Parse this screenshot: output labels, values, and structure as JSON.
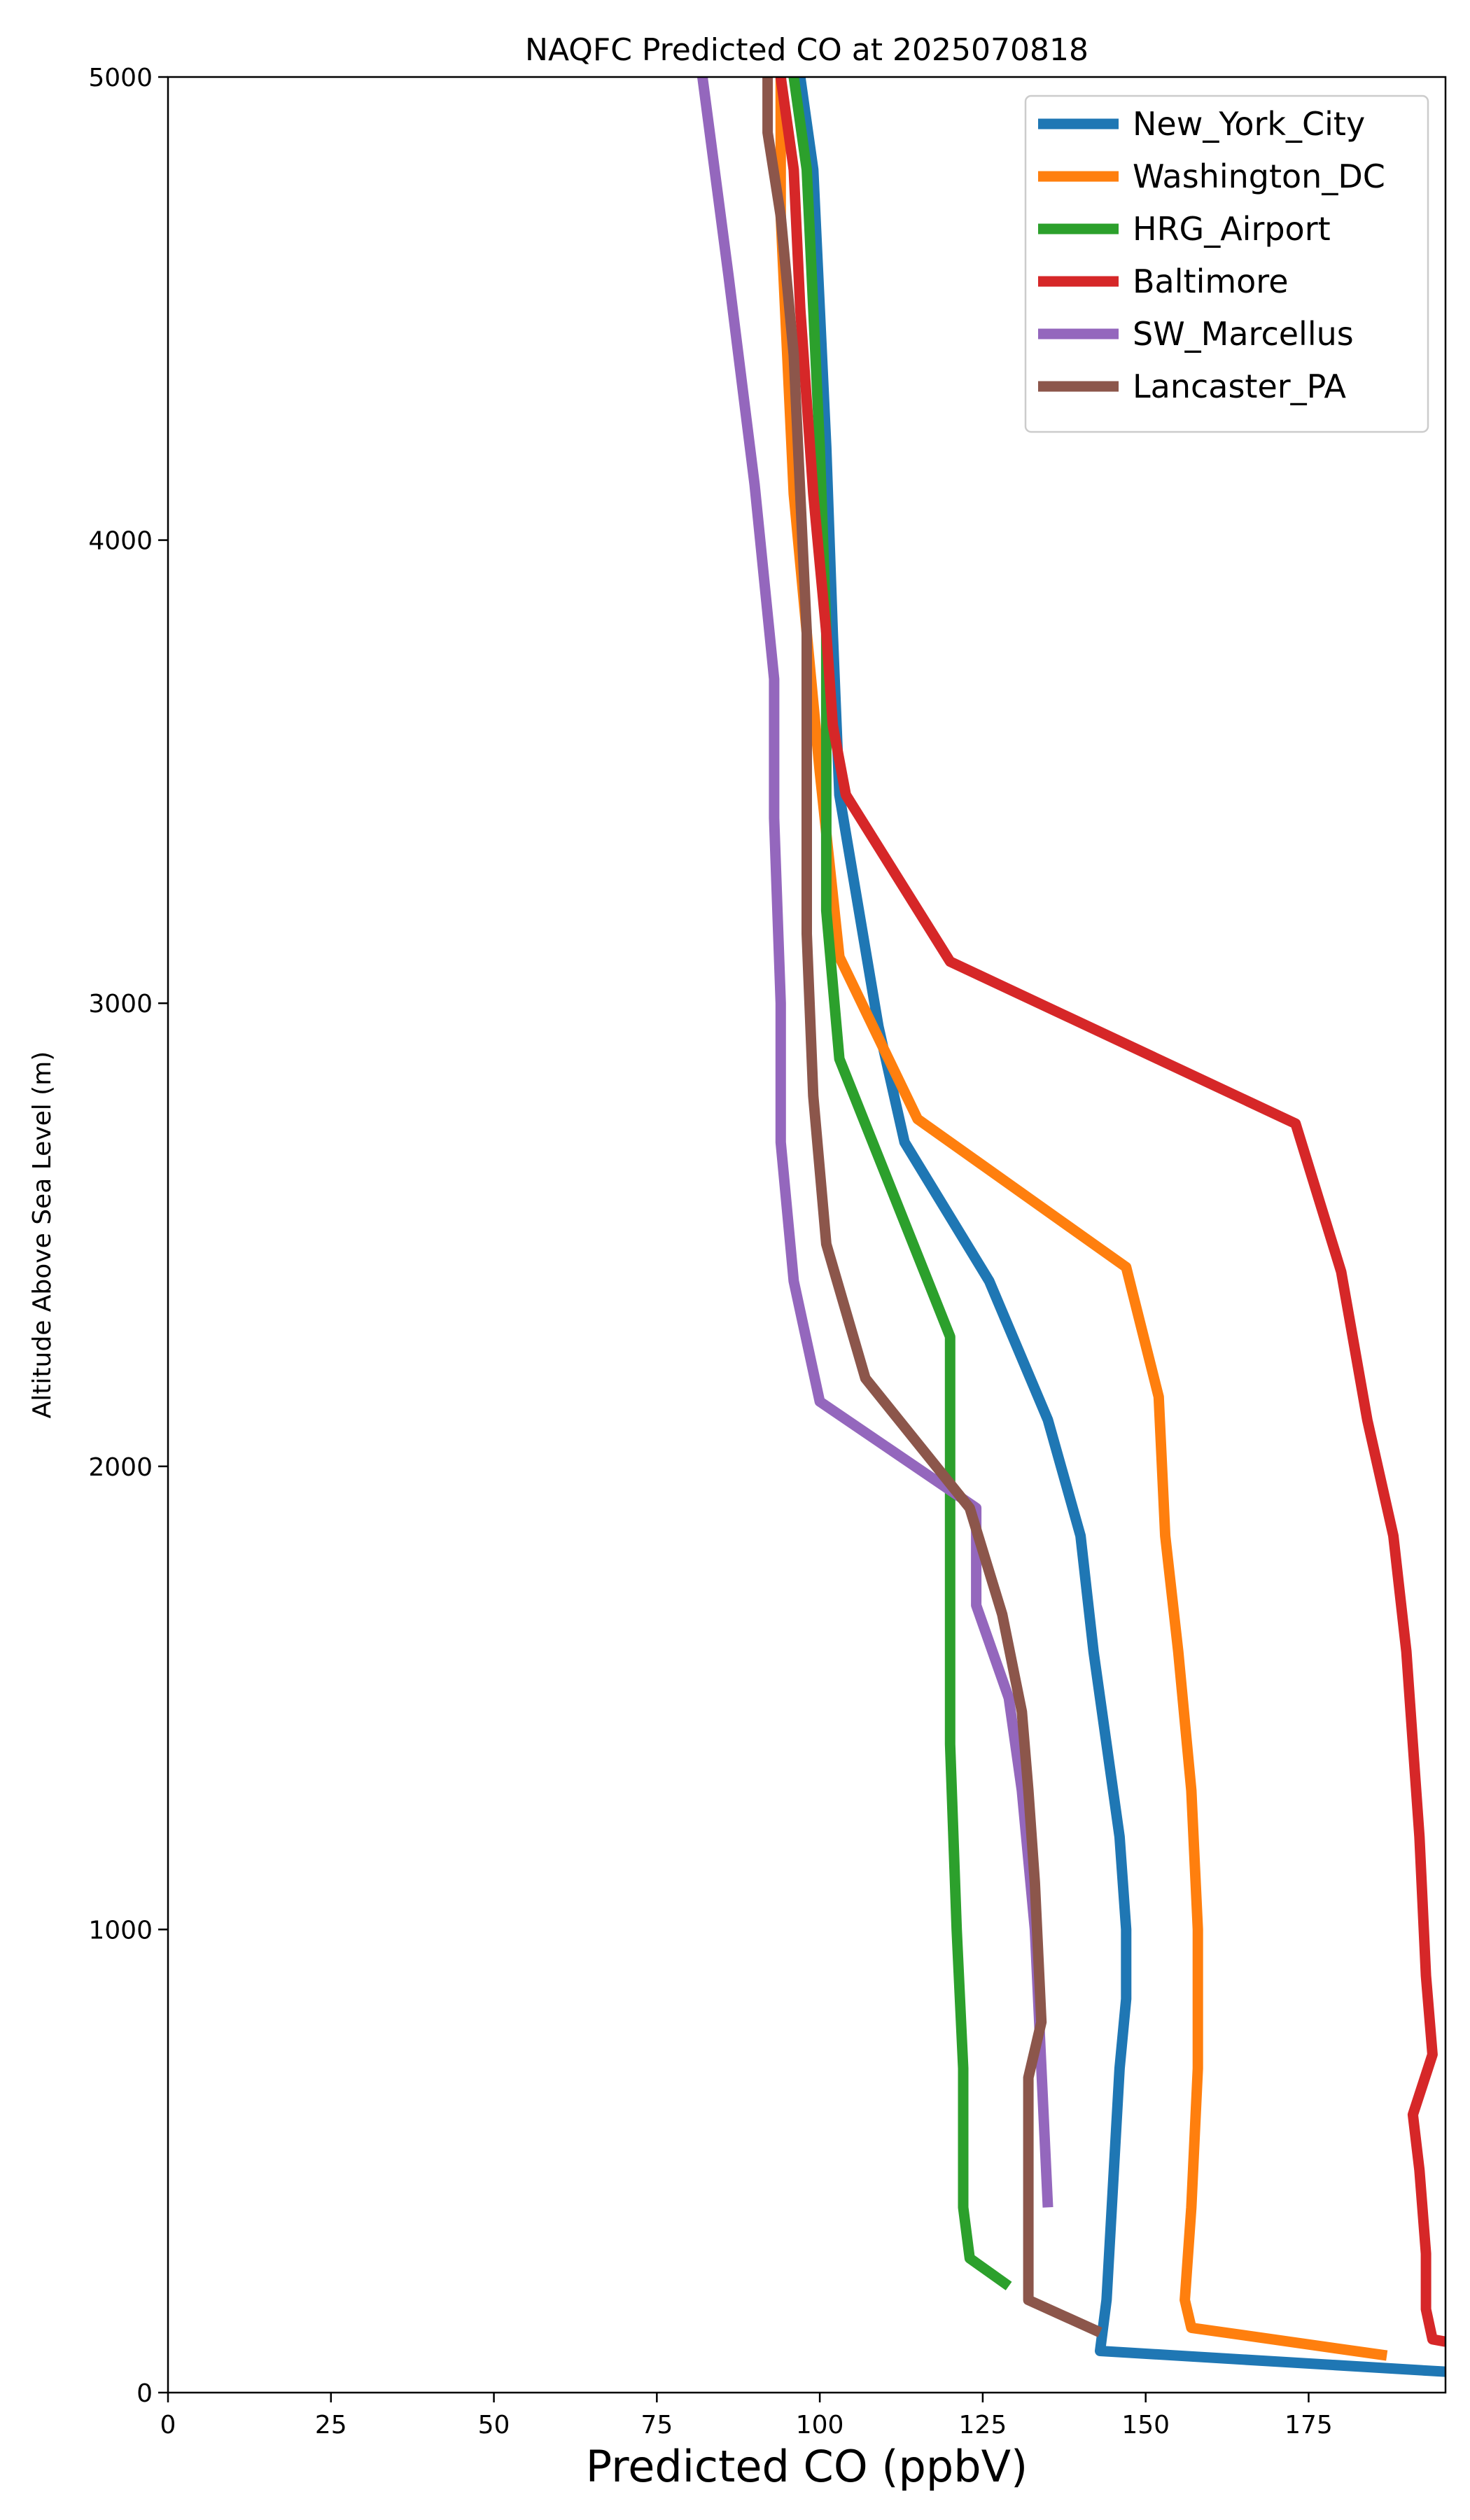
{
  "chart_data": {
    "type": "line",
    "title": "NAQFC Predicted CO at 2025070818",
    "xlabel": "Predicted CO (ppbV)",
    "ylabel": "Altitude Above Sea Level (m)",
    "xlim": [
      0,
      196
    ],
    "ylim": [
      0,
      5000
    ],
    "xticks": [
      "0",
      "25",
      "50",
      "75",
      "100",
      "125",
      "150",
      "175"
    ],
    "yticks": [
      "0",
      "1000",
      "2000",
      "3000",
      "4000",
      "5000"
    ],
    "grid": false,
    "legend_position": "top-right",
    "series": [
      {
        "name": "New_York_City",
        "color": "#1f77b4",
        "points": [
          [
            196,
            45
          ],
          [
            143,
            90
          ],
          [
            144,
            200
          ],
          [
            145,
            450
          ],
          [
            146,
            700
          ],
          [
            147,
            850
          ],
          [
            147,
            1000
          ],
          [
            146,
            1200
          ],
          [
            144,
            1400
          ],
          [
            142,
            1600
          ],
          [
            140,
            1850
          ],
          [
            135,
            2100
          ],
          [
            126,
            2400
          ],
          [
            113,
            2700
          ],
          [
            109,
            2950
          ],
          [
            103,
            3450
          ],
          [
            102,
            3800
          ],
          [
            101,
            4200
          ],
          [
            100,
            4500
          ],
          [
            99,
            4800
          ],
          [
            97,
            5000
          ]
        ]
      },
      {
        "name": "Washington_DC",
        "color": "#ff7f0e",
        "points": [
          [
            187,
            80
          ],
          [
            157,
            140
          ],
          [
            156,
            200
          ],
          [
            157,
            400
          ],
          [
            158,
            700
          ],
          [
            158,
            1000
          ],
          [
            157,
            1300
          ],
          [
            155,
            1600
          ],
          [
            153,
            1850
          ],
          [
            152,
            2150
          ],
          [
            147,
            2430
          ],
          [
            115,
            2750
          ],
          [
            103,
            3100
          ],
          [
            100,
            3500
          ],
          [
            98,
            3800
          ],
          [
            96,
            4100
          ],
          [
            95,
            4400
          ],
          [
            94,
            4700
          ],
          [
            94,
            5000
          ]
        ]
      },
      {
        "name": "HRG_Airport",
        "color": "#2ca02c",
        "points": [
          [
            129,
            230
          ],
          [
            123,
            290
          ],
          [
            122,
            400
          ],
          [
            122,
            700
          ],
          [
            121,
            1000
          ],
          [
            120,
            1400
          ],
          [
            120,
            1800
          ],
          [
            120,
            2000
          ],
          [
            120,
            2280
          ],
          [
            103,
            2880
          ],
          [
            101,
            3200
          ],
          [
            101,
            3500
          ],
          [
            101,
            3800
          ],
          [
            100,
            4200
          ],
          [
            99,
            4500
          ],
          [
            98,
            4800
          ],
          [
            96,
            5000
          ]
        ]
      },
      {
        "name": "Baltimore",
        "color": "#d62728",
        "points": [
          [
            196,
            110
          ],
          [
            194,
            115
          ],
          [
            193,
            180
          ],
          [
            193,
            300
          ],
          [
            192,
            480
          ],
          [
            191,
            600
          ],
          [
            194,
            730
          ],
          [
            193,
            900
          ],
          [
            192,
            1200
          ],
          [
            191,
            1400
          ],
          [
            190,
            1600
          ],
          [
            188,
            1850
          ],
          [
            184,
            2100
          ],
          [
            180,
            2420
          ],
          [
            173,
            2740
          ],
          [
            120,
            3090
          ],
          [
            104,
            3450
          ],
          [
            102,
            3600
          ],
          [
            101,
            3800
          ],
          [
            99,
            4100
          ],
          [
            97,
            4500
          ],
          [
            96,
            4800
          ],
          [
            94,
            5000
          ]
        ]
      },
      {
        "name": "SW_Marcellus",
        "color": "#9467bd",
        "points": [
          [
            135,
            400
          ],
          [
            134,
            700
          ],
          [
            133,
            1000
          ],
          [
            131,
            1300
          ],
          [
            129,
            1500
          ],
          [
            124,
            1700
          ],
          [
            124,
            1910
          ],
          [
            100,
            2140
          ],
          [
            96,
            2400
          ],
          [
            94,
            2700
          ],
          [
            94,
            3000
          ],
          [
            93,
            3400
          ],
          [
            93,
            3700
          ],
          [
            90,
            4120
          ],
          [
            86,
            4570
          ],
          [
            82,
            5000
          ]
        ]
      },
      {
        "name": "Lancaster_PA",
        "color": "#8c564b",
        "points": [
          [
            143,
            130
          ],
          [
            132,
            200
          ],
          [
            132,
            400
          ],
          [
            132,
            680
          ],
          [
            134,
            800
          ],
          [
            133,
            1100
          ],
          [
            132,
            1300
          ],
          [
            131,
            1470
          ],
          [
            128,
            1680
          ],
          [
            123,
            1910
          ],
          [
            107,
            2190
          ],
          [
            101,
            2480
          ],
          [
            99,
            2800
          ],
          [
            98,
            3150
          ],
          [
            98,
            3500
          ],
          [
            98,
            3800
          ],
          [
            97,
            4100
          ],
          [
            96,
            4400
          ],
          [
            94,
            4700
          ],
          [
            92,
            4880
          ],
          [
            92,
            5000
          ]
        ]
      }
    ]
  }
}
